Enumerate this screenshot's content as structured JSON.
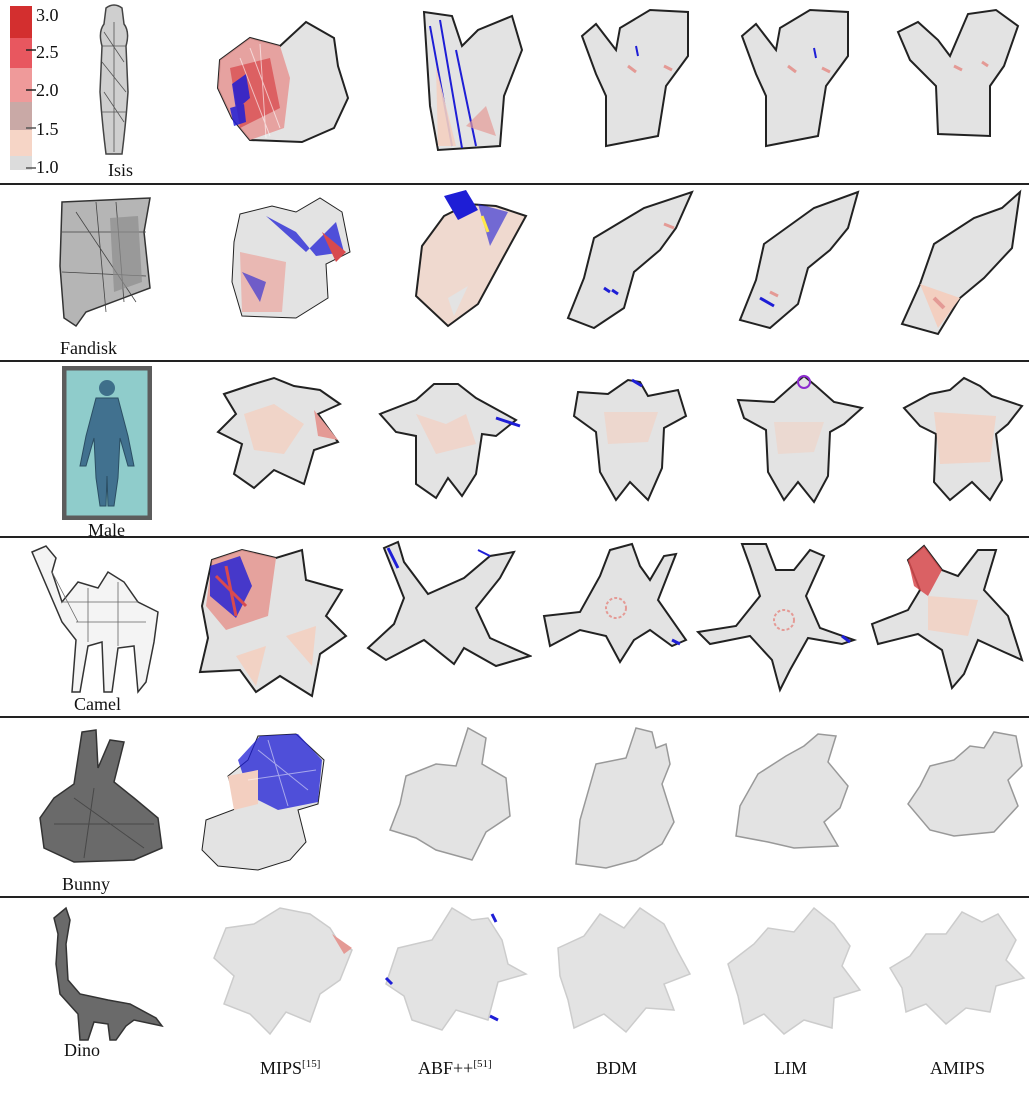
{
  "legend": {
    "ticks": [
      "3.0",
      "2.5",
      "2.0",
      "1.5",
      "1.0"
    ],
    "colors": [
      "#d32f2f",
      "#e8575f",
      "#ef9a9a",
      "#c9a9a6",
      "#f6d5c6",
      "#dcdcdc"
    ]
  },
  "models": [
    {
      "name": "Isis"
    },
    {
      "name": "Fandisk"
    },
    {
      "name": "Male"
    },
    {
      "name": "Camel"
    },
    {
      "name": "Bunny"
    },
    {
      "name": "Dino"
    }
  ],
  "methods": [
    {
      "name": "MIPS",
      "ref": "[15]"
    },
    {
      "name": "ABF++",
      "ref": "[51]"
    },
    {
      "name": "BDM",
      "ref": ""
    },
    {
      "name": "LIM",
      "ref": ""
    },
    {
      "name": "AMIPS",
      "ref": ""
    }
  ],
  "colors": {
    "face": "#e3e3e3",
    "outline": "#222222",
    "distortion_light": "#f3cfc0",
    "distortion_mid": "#e49a95",
    "distortion_high": "#d9464a",
    "flipped": "#1e1ed6",
    "model_gray": "#6a6a6a",
    "male_bg": "#8fcccb",
    "male_frame": "#5c5c5c"
  }
}
